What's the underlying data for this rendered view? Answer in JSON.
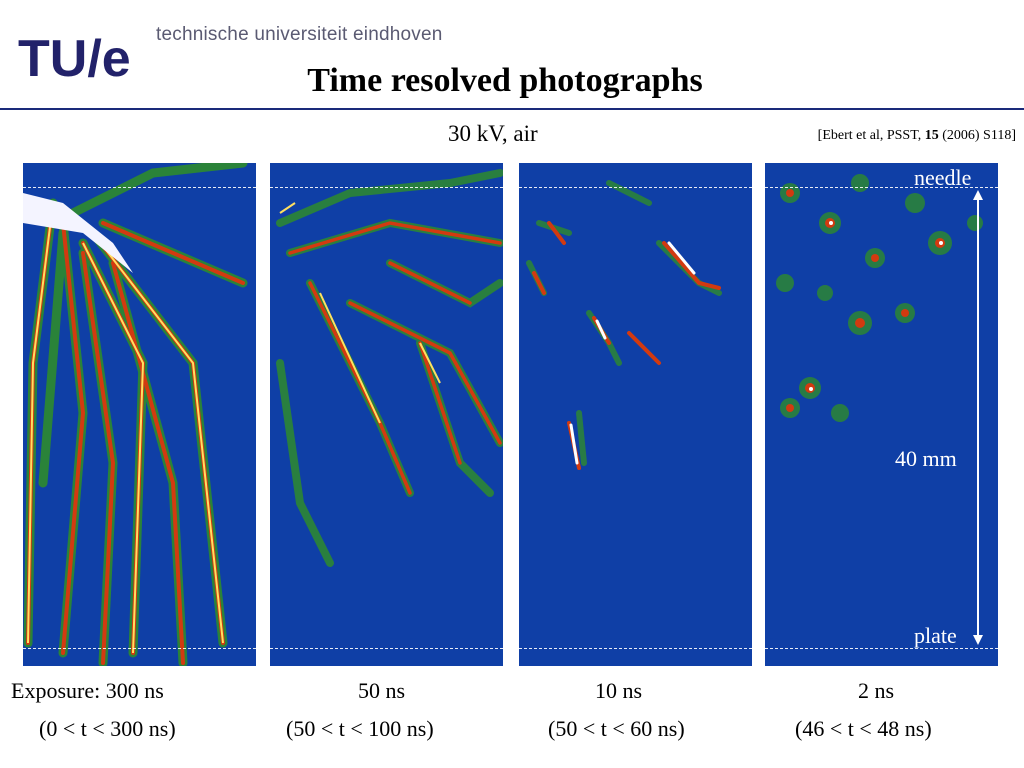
{
  "header": {
    "logo_text": "TU/e",
    "institution": "technische universiteit eindhoven",
    "title": "Time resolved photographs"
  },
  "subtitle": "30 kV, air",
  "citation": {
    "prefix": "[Ebert et al, PSST, ",
    "volume": "15",
    "suffix": " (2006) S118]"
  },
  "panel_labels": {
    "needle": "needle",
    "plate": "plate",
    "distance": "40 mm"
  },
  "panels": [
    {
      "exposure": "Exposure: 300 ns",
      "window": "(0 < t < 300 ns)"
    },
    {
      "exposure": "50 ns",
      "window": "(50 < t < 100 ns)"
    },
    {
      "exposure": "10 ns",
      "window": "(50 < t < 60 ns)"
    },
    {
      "exposure": "2 ns",
      "window": "(46 < t < 48 ns)"
    }
  ],
  "colors": {
    "background_blue": "#0f3fa6",
    "streamer_green": "#2e8b2e",
    "streamer_red": "#d23a10",
    "streamer_yellow": "#ffe060",
    "rule": "#1a2a7a"
  }
}
